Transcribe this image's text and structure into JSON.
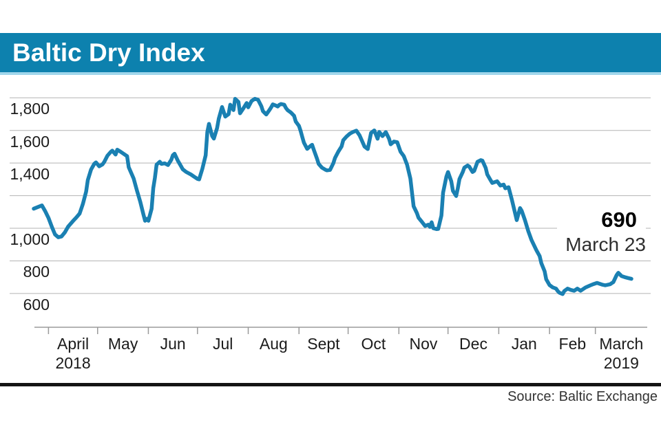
{
  "banner": {
    "title": "Baltic Dry Index"
  },
  "source": {
    "label": "Source: Baltic Exchange"
  },
  "colors": {
    "banner": "#0d81ae",
    "banner_accent": "#a0d6eb",
    "line": "#1a80b2",
    "gridline": "#b3b3b3",
    "axis": "#9a9a9a"
  },
  "chart_data": {
    "type": "line",
    "title": "Baltic Dry Index",
    "series_name": "Baltic Dry Index",
    "legend": "none",
    "grid": "horizontal",
    "annotation": {
      "value": "690",
      "label": "March 23"
    },
    "y_axis": {
      "range": [
        600,
        1830
      ],
      "gridline_values": [
        600,
        800,
        1000,
        1200,
        1400,
        1600,
        1800
      ],
      "labels": [
        {
          "text": "1,800",
          "value": 1800
        },
        {
          "text": "1,600",
          "value": 1600
        },
        {
          "text": "1,400",
          "value": 1400
        },
        {
          "text": "1,000",
          "value": 1000
        },
        {
          "text": "800",
          "value": 800
        },
        {
          "text": "600",
          "value": 600
        }
      ]
    },
    "x_axis": {
      "span_days": 365,
      "months": [
        {
          "label": "April",
          "sub": "2018",
          "day": 9
        },
        {
          "label": "May",
          "sub": "",
          "day": 39
        },
        {
          "label": "Jun",
          "sub": "",
          "day": 70
        },
        {
          "label": "Jul",
          "sub": "",
          "day": 100
        },
        {
          "label": "Aug",
          "sub": "",
          "day": 131
        },
        {
          "label": "Sept",
          "sub": "",
          "day": 162
        },
        {
          "label": "Oct",
          "sub": "",
          "day": 192
        },
        {
          "label": "Nov",
          "sub": "",
          "day": 223
        },
        {
          "label": "Dec",
          "sub": "",
          "day": 253
        },
        {
          "label": "Jan",
          "sub": "",
          "day": 284
        },
        {
          "label": "Feb",
          "sub": "",
          "day": 315
        },
        {
          "label": "March",
          "sub": "2019",
          "day": 343
        }
      ]
    },
    "points": [
      [
        0,
        1120
      ],
      [
        3,
        1132
      ],
      [
        5,
        1140
      ],
      [
        7,
        1105
      ],
      [
        9,
        1064
      ],
      [
        11,
        1010
      ],
      [
        13,
        962
      ],
      [
        15,
        945
      ],
      [
        17,
        950
      ],
      [
        19,
        975
      ],
      [
        21,
        1010
      ],
      [
        24,
        1045
      ],
      [
        26,
        1066
      ],
      [
        28,
        1090
      ],
      [
        30,
        1148
      ],
      [
        32,
        1225
      ],
      [
        33,
        1295
      ],
      [
        35,
        1360
      ],
      [
        37,
        1396
      ],
      [
        38,
        1404
      ],
      [
        40,
        1380
      ],
      [
        42,
        1392
      ],
      [
        43,
        1406
      ],
      [
        45,
        1445
      ],
      [
        47,
        1468
      ],
      [
        48,
        1476
      ],
      [
        50,
        1452
      ],
      [
        51,
        1482
      ],
      [
        53,
        1470
      ],
      [
        55,
        1456
      ],
      [
        57,
        1442
      ],
      [
        58,
        1375
      ],
      [
        61,
        1305
      ],
      [
        63,
        1233
      ],
      [
        65,
        1164
      ],
      [
        67,
        1085
      ],
      [
        68,
        1046
      ],
      [
        69,
        1058
      ],
      [
        70,
        1046
      ],
      [
        72,
        1120
      ],
      [
        73,
        1246
      ],
      [
        74,
        1310
      ],
      [
        75,
        1390
      ],
      [
        77,
        1408
      ],
      [
        78,
        1395
      ],
      [
        80,
        1398
      ],
      [
        82,
        1388
      ],
      [
        84,
        1420
      ],
      [
        85,
        1448
      ],
      [
        86,
        1457
      ],
      [
        88,
        1414
      ],
      [
        90,
        1380
      ],
      [
        91,
        1362
      ],
      [
        93,
        1346
      ],
      [
        96,
        1330
      ],
      [
        98,
        1316
      ],
      [
        100,
        1303
      ],
      [
        101,
        1300
      ],
      [
        103,
        1365
      ],
      [
        105,
        1448
      ],
      [
        106,
        1590
      ],
      [
        107,
        1640
      ],
      [
        109,
        1565
      ],
      [
        110,
        1550
      ],
      [
        112,
        1615
      ],
      [
        113,
        1672
      ],
      [
        115,
        1744
      ],
      [
        117,
        1685
      ],
      [
        119,
        1700
      ],
      [
        120,
        1758
      ],
      [
        122,
        1725
      ],
      [
        123,
        1794
      ],
      [
        125,
        1775
      ],
      [
        126,
        1705
      ],
      [
        128,
        1735
      ],
      [
        130,
        1768
      ],
      [
        131,
        1742
      ],
      [
        133,
        1780
      ],
      [
        135,
        1794
      ],
      [
        137,
        1788
      ],
      [
        139,
        1748
      ],
      [
        140,
        1718
      ],
      [
        142,
        1698
      ],
      [
        144,
        1726
      ],
      [
        145,
        1742
      ],
      [
        146,
        1760
      ],
      [
        148,
        1752
      ],
      [
        149,
        1747
      ],
      [
        150,
        1757
      ],
      [
        151,
        1762
      ],
      [
        153,
        1758
      ],
      [
        154,
        1738
      ],
      [
        155,
        1725
      ],
      [
        157,
        1710
      ],
      [
        159,
        1690
      ],
      [
        160,
        1655
      ],
      [
        162,
        1628
      ],
      [
        163,
        1597
      ],
      [
        164,
        1560
      ],
      [
        165,
        1525
      ],
      [
        167,
        1487
      ],
      [
        169,
        1505
      ],
      [
        170,
        1512
      ],
      [
        171,
        1482
      ],
      [
        173,
        1427
      ],
      [
        174,
        1395
      ],
      [
        176,
        1372
      ],
      [
        178,
        1360
      ],
      [
        179,
        1355
      ],
      [
        181,
        1358
      ],
      [
        183,
        1400
      ],
      [
        184,
        1432
      ],
      [
        186,
        1470
      ],
      [
        188,
        1502
      ],
      [
        189,
        1540
      ],
      [
        191,
        1562
      ],
      [
        193,
        1580
      ],
      [
        195,
        1591
      ],
      [
        197,
        1599
      ],
      [
        199,
        1570
      ],
      [
        202,
        1501
      ],
      [
        204,
        1486
      ],
      [
        206,
        1585
      ],
      [
        208,
        1600
      ],
      [
        210,
        1549
      ],
      [
        211,
        1591
      ],
      [
        213,
        1565
      ],
      [
        215,
        1590
      ],
      [
        217,
        1550
      ],
      [
        218,
        1515
      ],
      [
        220,
        1532
      ],
      [
        222,
        1528
      ],
      [
        224,
        1470
      ],
      [
        226,
        1443
      ],
      [
        228,
        1390
      ],
      [
        230,
        1305
      ],
      [
        231,
        1221
      ],
      [
        232,
        1135
      ],
      [
        234,
        1093
      ],
      [
        235,
        1065
      ],
      [
        237,
        1040
      ],
      [
        239,
        1014
      ],
      [
        241,
        1022
      ],
      [
        242,
        1008
      ],
      [
        243,
        1037
      ],
      [
        244,
        1000
      ],
      [
        246,
        995
      ],
      [
        247,
        996
      ],
      [
        249,
        1078
      ],
      [
        250,
        1218
      ],
      [
        252,
        1317
      ],
      [
        253,
        1345
      ],
      [
        255,
        1288
      ],
      [
        256,
        1230
      ],
      [
        258,
        1198
      ],
      [
        259,
        1245
      ],
      [
        260,
        1302
      ],
      [
        262,
        1345
      ],
      [
        263,
        1372
      ],
      [
        265,
        1385
      ],
      [
        266,
        1378
      ],
      [
        268,
        1345
      ],
      [
        269,
        1352
      ],
      [
        271,
        1408
      ],
      [
        273,
        1418
      ],
      [
        274,
        1415
      ],
      [
        276,
        1370
      ],
      [
        277,
        1330
      ],
      [
        279,
        1295
      ],
      [
        280,
        1278
      ],
      [
        283,
        1288
      ],
      [
        285,
        1262
      ],
      [
        287,
        1268
      ],
      [
        288,
        1245
      ],
      [
        290,
        1252
      ],
      [
        292,
        1175
      ],
      [
        293,
        1133
      ],
      [
        295,
        1050
      ],
      [
        297,
        1124
      ],
      [
        298,
        1107
      ],
      [
        300,
        1050
      ],
      [
        302,
        983
      ],
      [
        304,
        928
      ],
      [
        306,
        886
      ],
      [
        307,
        865
      ],
      [
        309,
        829
      ],
      [
        310,
        786
      ],
      [
        312,
        736
      ],
      [
        313,
        687
      ],
      [
        315,
        652
      ],
      [
        317,
        637
      ],
      [
        319,
        630
      ],
      [
        320,
        615
      ],
      [
        321,
        605
      ],
      [
        323,
        596
      ],
      [
        324,
        615
      ],
      [
        326,
        630
      ],
      [
        328,
        622
      ],
      [
        330,
        617
      ],
      [
        332,
        630
      ],
      [
        334,
        617
      ],
      [
        337,
        637
      ],
      [
        340,
        650
      ],
      [
        342,
        658
      ],
      [
        344,
        665
      ],
      [
        347,
        655
      ],
      [
        349,
        650
      ],
      [
        352,
        657
      ],
      [
        354,
        670
      ],
      [
        356,
        713
      ],
      [
        357,
        727
      ],
      [
        359,
        707
      ],
      [
        361,
        700
      ],
      [
        363,
        695
      ],
      [
        365,
        690
      ]
    ]
  }
}
